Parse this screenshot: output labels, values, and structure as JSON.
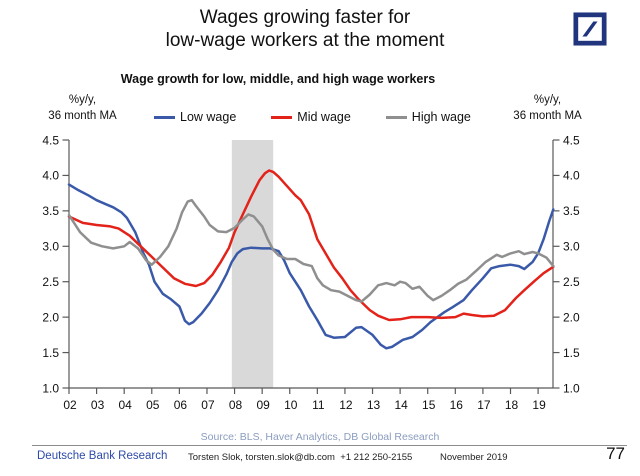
{
  "title": "Wages growing faster for\nlow-wage workers at the moment",
  "logo": {
    "color": "#21357e"
  },
  "chart_data": {
    "type": "line",
    "title": "Wage growth for low, middle, and high wage workers",
    "left_axis_label": "%y/y,\n36 month MA",
    "right_axis_label": "%y/y,\n36 month MA",
    "ylim": [
      1.0,
      4.5
    ],
    "xlim": [
      2002,
      2019.54
    ],
    "y_ticks": [
      "4.5",
      "4.0",
      "3.5",
      "3.0",
      "2.5",
      "2.0",
      "1.5",
      "1.0"
    ],
    "x_ticks": [
      "02",
      "03",
      "04",
      "05",
      "06",
      "07",
      "08",
      "09",
      "10",
      "11",
      "12",
      "13",
      "14",
      "15",
      "16",
      "17",
      "18",
      "19"
    ],
    "grid": false,
    "legend_position": "top",
    "axis_color": "#595959",
    "shaded_region": {
      "from": 2007.9,
      "to": 2009.4,
      "color": "#d9d9d9",
      "label": "recession-band"
    },
    "series": [
      {
        "name": "Low wage",
        "color": "#3a5aa9",
        "points": [
          [
            2002.0,
            3.87
          ],
          [
            2002.3,
            3.8
          ],
          [
            2002.7,
            3.72
          ],
          [
            2003.0,
            3.65
          ],
          [
            2003.3,
            3.6
          ],
          [
            2003.6,
            3.55
          ],
          [
            2003.9,
            3.48
          ],
          [
            2004.1,
            3.4
          ],
          [
            2004.4,
            3.2
          ],
          [
            2004.7,
            2.9
          ],
          [
            2004.9,
            2.74
          ],
          [
            2005.1,
            2.5
          ],
          [
            2005.4,
            2.33
          ],
          [
            2005.7,
            2.25
          ],
          [
            2006.0,
            2.15
          ],
          [
            2006.2,
            1.95
          ],
          [
            2006.35,
            1.9
          ],
          [
            2006.5,
            1.93
          ],
          [
            2006.8,
            2.05
          ],
          [
            2007.1,
            2.2
          ],
          [
            2007.4,
            2.38
          ],
          [
            2007.7,
            2.6
          ],
          [
            2007.9,
            2.78
          ],
          [
            2008.1,
            2.9
          ],
          [
            2008.3,
            2.96
          ],
          [
            2008.6,
            2.98
          ],
          [
            2009.0,
            2.97
          ],
          [
            2009.3,
            2.97
          ],
          [
            2009.6,
            2.93
          ],
          [
            2009.8,
            2.8
          ],
          [
            2010.0,
            2.62
          ],
          [
            2010.2,
            2.5
          ],
          [
            2010.4,
            2.38
          ],
          [
            2010.7,
            2.15
          ],
          [
            2011.0,
            1.96
          ],
          [
            2011.3,
            1.75
          ],
          [
            2011.6,
            1.71
          ],
          [
            2012.0,
            1.72
          ],
          [
            2012.4,
            1.85
          ],
          [
            2012.6,
            1.86
          ],
          [
            2013.0,
            1.75
          ],
          [
            2013.3,
            1.61
          ],
          [
            2013.5,
            1.56
          ],
          [
            2013.7,
            1.58
          ],
          [
            2014.1,
            1.68
          ],
          [
            2014.45,
            1.72
          ],
          [
            2014.8,
            1.82
          ],
          [
            2015.1,
            1.93
          ],
          [
            2015.6,
            2.07
          ],
          [
            2015.9,
            2.14
          ],
          [
            2016.3,
            2.24
          ],
          [
            2016.6,
            2.38
          ],
          [
            2017.0,
            2.55
          ],
          [
            2017.3,
            2.69
          ],
          [
            2017.6,
            2.72
          ],
          [
            2018.0,
            2.74
          ],
          [
            2018.3,
            2.72
          ],
          [
            2018.5,
            2.68
          ],
          [
            2018.8,
            2.78
          ],
          [
            2019.0,
            2.9
          ],
          [
            2019.2,
            3.1
          ],
          [
            2019.4,
            3.35
          ],
          [
            2019.55,
            3.52
          ]
        ]
      },
      {
        "name": "Mid wage",
        "color": "#e32219",
        "points": [
          [
            2002.0,
            3.42
          ],
          [
            2002.5,
            3.33
          ],
          [
            2003.0,
            3.3
          ],
          [
            2003.5,
            3.28
          ],
          [
            2003.8,
            3.25
          ],
          [
            2004.2,
            3.15
          ],
          [
            2004.6,
            3.0
          ],
          [
            2005.0,
            2.85
          ],
          [
            2005.4,
            2.7
          ],
          [
            2005.8,
            2.55
          ],
          [
            2006.2,
            2.47
          ],
          [
            2006.6,
            2.44
          ],
          [
            2006.9,
            2.48
          ],
          [
            2007.2,
            2.6
          ],
          [
            2007.5,
            2.78
          ],
          [
            2007.8,
            2.98
          ],
          [
            2008.0,
            3.2
          ],
          [
            2008.3,
            3.45
          ],
          [
            2008.6,
            3.7
          ],
          [
            2008.9,
            3.93
          ],
          [
            2009.1,
            4.03
          ],
          [
            2009.25,
            4.07
          ],
          [
            2009.4,
            4.05
          ],
          [
            2009.6,
            3.98
          ],
          [
            2009.9,
            3.85
          ],
          [
            2010.2,
            3.72
          ],
          [
            2010.4,
            3.65
          ],
          [
            2010.7,
            3.45
          ],
          [
            2011.0,
            3.1
          ],
          [
            2011.3,
            2.9
          ],
          [
            2011.6,
            2.7
          ],
          [
            2011.9,
            2.55
          ],
          [
            2012.2,
            2.38
          ],
          [
            2012.5,
            2.25
          ],
          [
            2012.9,
            2.1
          ],
          [
            2013.2,
            2.02
          ],
          [
            2013.6,
            1.96
          ],
          [
            2014.0,
            1.97
          ],
          [
            2014.4,
            2.0
          ],
          [
            2015.0,
            2.0
          ],
          [
            2015.5,
            1.99
          ],
          [
            2016.0,
            2.0
          ],
          [
            2016.3,
            2.05
          ],
          [
            2016.6,
            2.03
          ],
          [
            2017.0,
            2.01
          ],
          [
            2017.4,
            2.02
          ],
          [
            2017.8,
            2.1
          ],
          [
            2018.2,
            2.27
          ],
          [
            2018.5,
            2.38
          ],
          [
            2018.9,
            2.52
          ],
          [
            2019.2,
            2.62
          ],
          [
            2019.55,
            2.71
          ]
        ]
      },
      {
        "name": "High wage",
        "color": "#8f8f8f",
        "points": [
          [
            2002.0,
            3.44
          ],
          [
            2002.4,
            3.2
          ],
          [
            2002.8,
            3.05
          ],
          [
            2003.2,
            3.0
          ],
          [
            2003.6,
            2.97
          ],
          [
            2004.0,
            3.0
          ],
          [
            2004.2,
            3.06
          ],
          [
            2004.5,
            2.97
          ],
          [
            2004.8,
            2.8
          ],
          [
            2005.0,
            2.74
          ],
          [
            2005.3,
            2.85
          ],
          [
            2005.6,
            3.0
          ],
          [
            2005.9,
            3.25
          ],
          [
            2006.1,
            3.48
          ],
          [
            2006.3,
            3.63
          ],
          [
            2006.45,
            3.65
          ],
          [
            2006.6,
            3.57
          ],
          [
            2006.9,
            3.42
          ],
          [
            2007.1,
            3.3
          ],
          [
            2007.4,
            3.21
          ],
          [
            2007.7,
            3.2
          ],
          [
            2008.0,
            3.26
          ],
          [
            2008.3,
            3.38
          ],
          [
            2008.5,
            3.45
          ],
          [
            2008.7,
            3.42
          ],
          [
            2009.0,
            3.28
          ],
          [
            2009.2,
            3.1
          ],
          [
            2009.4,
            2.95
          ],
          [
            2009.6,
            2.87
          ],
          [
            2009.9,
            2.82
          ],
          [
            2010.2,
            2.82
          ],
          [
            2010.5,
            2.75
          ],
          [
            2010.8,
            2.72
          ],
          [
            2011.0,
            2.55
          ],
          [
            2011.2,
            2.45
          ],
          [
            2011.5,
            2.38
          ],
          [
            2011.8,
            2.36
          ],
          [
            2012.1,
            2.3
          ],
          [
            2012.4,
            2.24
          ],
          [
            2012.6,
            2.22
          ],
          [
            2012.9,
            2.32
          ],
          [
            2013.2,
            2.45
          ],
          [
            2013.5,
            2.48
          ],
          [
            2013.8,
            2.45
          ],
          [
            2014.0,
            2.5
          ],
          [
            2014.2,
            2.48
          ],
          [
            2014.45,
            2.4
          ],
          [
            2014.7,
            2.43
          ],
          [
            2015.0,
            2.3
          ],
          [
            2015.2,
            2.24
          ],
          [
            2015.5,
            2.3
          ],
          [
            2015.8,
            2.38
          ],
          [
            2016.1,
            2.47
          ],
          [
            2016.4,
            2.53
          ],
          [
            2016.8,
            2.67
          ],
          [
            2017.1,
            2.78
          ],
          [
            2017.5,
            2.88
          ],
          [
            2017.7,
            2.85
          ],
          [
            2018.0,
            2.9
          ],
          [
            2018.3,
            2.93
          ],
          [
            2018.5,
            2.89
          ],
          [
            2018.8,
            2.92
          ],
          [
            2019.0,
            2.9
          ],
          [
            2019.3,
            2.84
          ],
          [
            2019.55,
            2.72
          ]
        ]
      }
    ]
  },
  "footer": {
    "source": "Source: BLS, Haver Analytics, DB Global Research",
    "brand": "Deutsche Bank Research",
    "contact": "Torsten Slok, torsten.slok@db.com  +1 212 250-2155",
    "date": "November 2019",
    "page": "77"
  }
}
